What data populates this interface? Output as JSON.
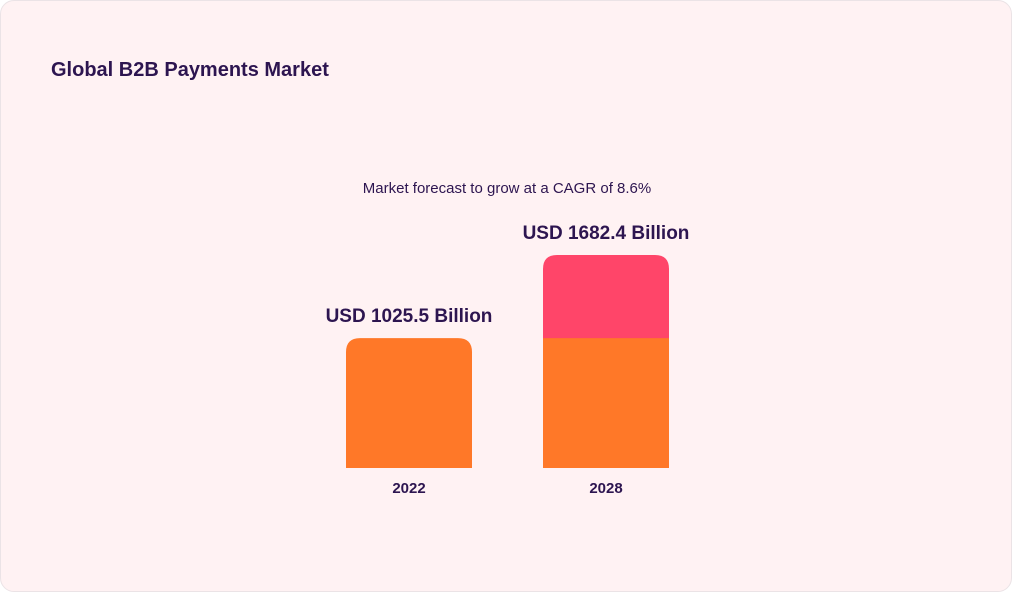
{
  "chart_data": {
    "type": "bar",
    "title": "Global B2B Payments Market",
    "subtitle": "Market forecast to grow at a CAGR of 8.6%",
    "categories": [
      "2022",
      "2028"
    ],
    "values": [
      1025.5,
      1682.4
    ],
    "data_labels": [
      "USD 1025.5 Billion",
      "USD 1682.4 Billion"
    ],
    "series_colors": {
      "base": "#ff7828",
      "growth": "#ff4569"
    },
    "xlabel": "",
    "ylabel": "",
    "ylim": [
      0,
      1900
    ],
    "grid": false,
    "legend": "none"
  }
}
